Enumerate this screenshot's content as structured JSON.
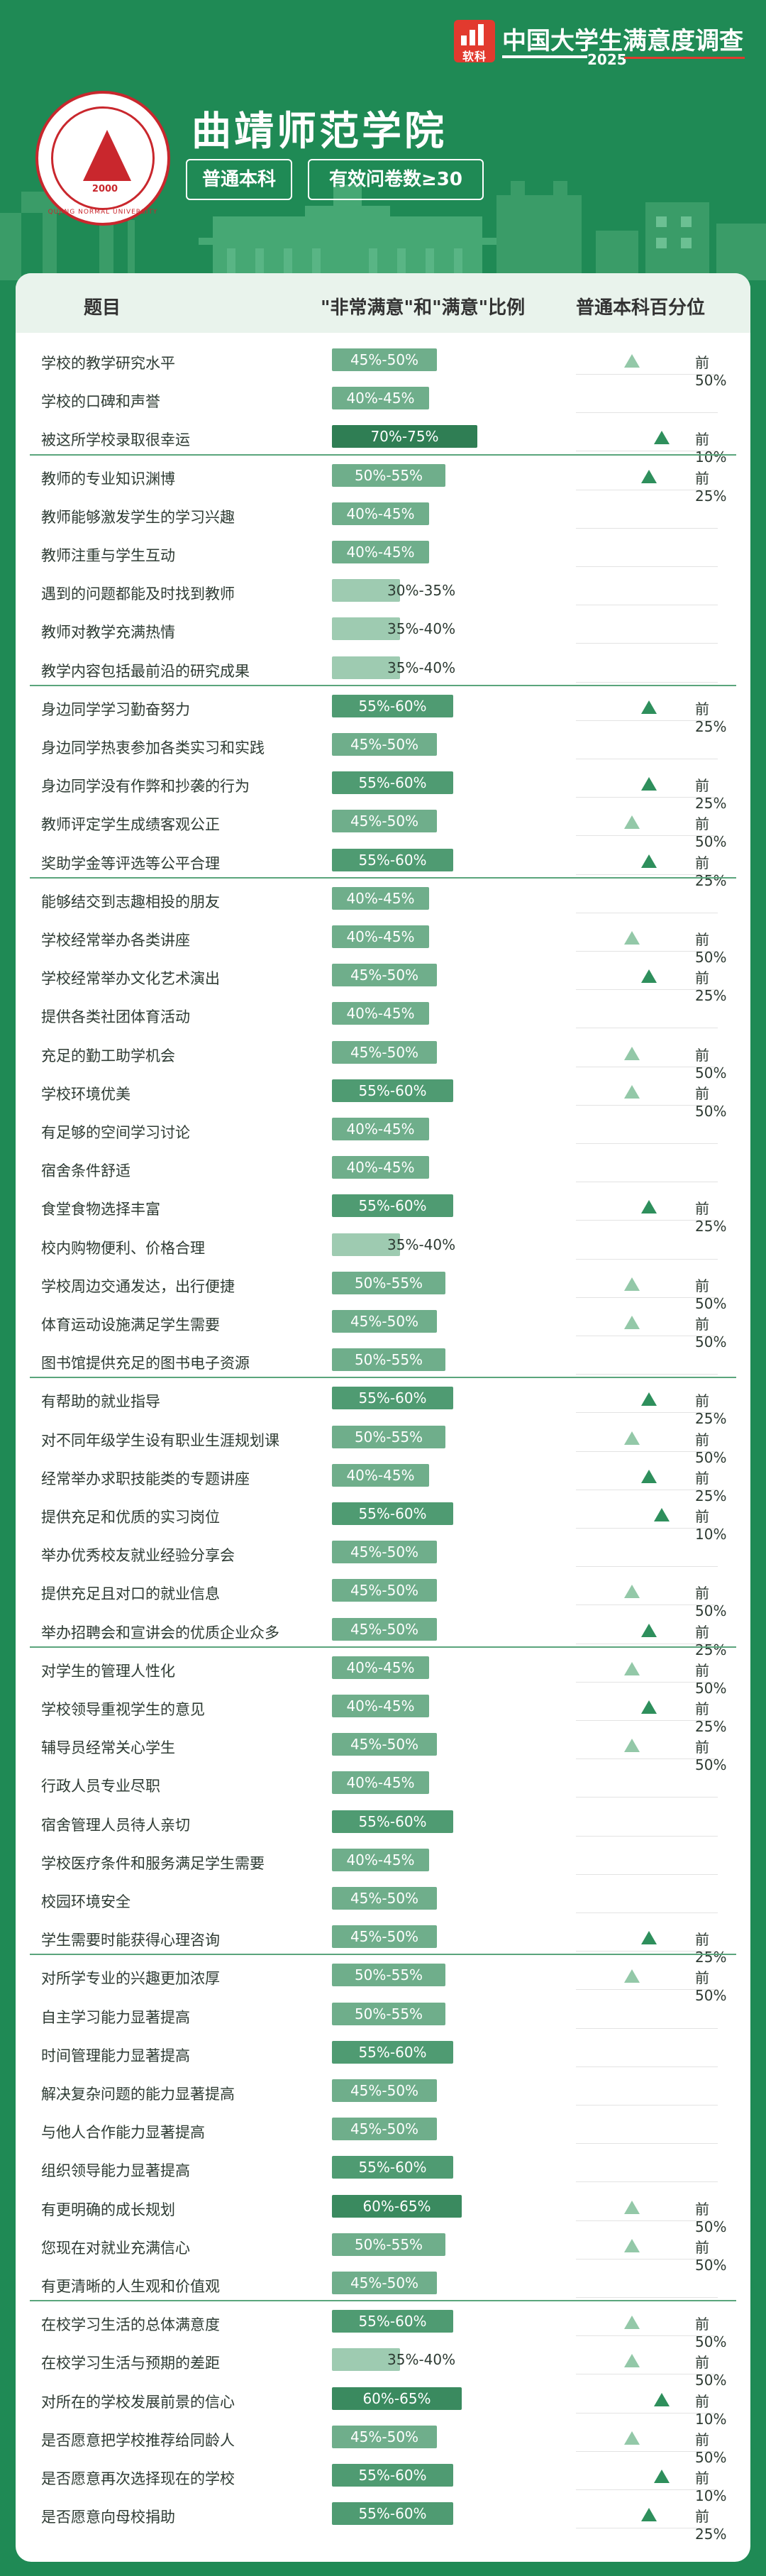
{
  "brand": {
    "logo_text": "软科",
    "title": "中国大学生满意度调查",
    "year": "2025"
  },
  "school": {
    "emblem_ring_text": "QUJING NORMAL UNIVERSITY",
    "emblem_year": "2000",
    "name": "曲靖师范学院",
    "tag_level": "普通本科",
    "tag_sample": "有效问卷数≥30"
  },
  "table": {
    "headers": {
      "item": "题目",
      "ratio": "\"非常满意\"和\"满意\"比例",
      "percentile": "普通本科百分位"
    },
    "colors": {
      "bar_30_35": "#9ecbb1",
      "bar_35_40": "#9ecbb1",
      "bar_40_45": "#6fae8b",
      "bar_45_50": "#6fae8b",
      "bar_50_55": "#6fae8b",
      "bar_55_60": "#4f9b72",
      "bar_60_65": "#3a8a5f",
      "bar_70_75": "#2f7e54"
    },
    "groups": [
      [
        {
          "q": "学校的教学研究水平",
          "ratio": "45%-50%",
          "level": 47.5,
          "pct": "前50%"
        },
        {
          "q": "学校的口碑和声誉",
          "ratio": "40%-45%",
          "level": 42.5,
          "pct": ""
        },
        {
          "q": "被这所学校录取很幸运",
          "ratio": "70%-75%",
          "level": 72.5,
          "pct": "前10%"
        }
      ],
      [
        {
          "q": "教师的专业知识渊博",
          "ratio": "50%-55%",
          "level": 52.5,
          "pct": "前25%"
        },
        {
          "q": "教师能够激发学生的学习兴趣",
          "ratio": "40%-45%",
          "level": 42.5,
          "pct": ""
        },
        {
          "q": "教师注重与学生互动",
          "ratio": "40%-45%",
          "level": 42.5,
          "pct": ""
        },
        {
          "q": "遇到的问题都能及时找到教师",
          "ratio": "30%-35%",
          "level": 32.5,
          "pct": ""
        },
        {
          "q": "教师对教学充满热情",
          "ratio": "35%-40%",
          "level": 37.5,
          "pct": ""
        },
        {
          "q": "教学内容包括最前沿的研究成果",
          "ratio": "35%-40%",
          "level": 37.5,
          "pct": ""
        }
      ],
      [
        {
          "q": "身边同学学习勤奋努力",
          "ratio": "55%-60%",
          "level": 57.5,
          "pct": "前25%"
        },
        {
          "q": "身边同学热衷参加各类实习和实践",
          "ratio": "45%-50%",
          "level": 47.5,
          "pct": ""
        },
        {
          "q": "身边同学没有作弊和抄袭的行为",
          "ratio": "55%-60%",
          "level": 57.5,
          "pct": "前25%"
        },
        {
          "q": "教师评定学生成绩客观公正",
          "ratio": "45%-50%",
          "level": 47.5,
          "pct": "前50%"
        },
        {
          "q": "奖助学金等评选等公平合理",
          "ratio": "55%-60%",
          "level": 57.5,
          "pct": "前25%"
        }
      ],
      [
        {
          "q": "能够结交到志趣相投的朋友",
          "ratio": "40%-45%",
          "level": 42.5,
          "pct": ""
        },
        {
          "q": "学校经常举办各类讲座",
          "ratio": "40%-45%",
          "level": 42.5,
          "pct": "前50%"
        },
        {
          "q": "学校经常举办文化艺术演出",
          "ratio": "45%-50%",
          "level": 47.5,
          "pct": "前25%"
        },
        {
          "q": "提供各类社团体育活动",
          "ratio": "40%-45%",
          "level": 42.5,
          "pct": ""
        },
        {
          "q": "充足的勤工助学机会",
          "ratio": "45%-50%",
          "level": 47.5,
          "pct": "前50%"
        },
        {
          "q": "学校环境优美",
          "ratio": "55%-60%",
          "level": 57.5,
          "pct": "前50%"
        },
        {
          "q": "有足够的空间学习讨论",
          "ratio": "40%-45%",
          "level": 42.5,
          "pct": ""
        },
        {
          "q": "宿舍条件舒适",
          "ratio": "40%-45%",
          "level": 42.5,
          "pct": ""
        },
        {
          "q": "食堂食物选择丰富",
          "ratio": "55%-60%",
          "level": 57.5,
          "pct": "前25%"
        },
        {
          "q": "校内购物便利、价格合理",
          "ratio": "35%-40%",
          "level": 37.5,
          "pct": ""
        },
        {
          "q": "学校周边交通发达，出行便捷",
          "ratio": "50%-55%",
          "level": 52.5,
          "pct": "前50%"
        },
        {
          "q": "体育运动设施满足学生需要",
          "ratio": "45%-50%",
          "level": 47.5,
          "pct": "前50%"
        },
        {
          "q": "图书馆提供充足的图书电子资源",
          "ratio": "50%-55%",
          "level": 52.5,
          "pct": ""
        }
      ],
      [
        {
          "q": "有帮助的就业指导",
          "ratio": "55%-60%",
          "level": 57.5,
          "pct": "前25%"
        },
        {
          "q": "对不同年级学生设有职业生涯规划课",
          "ratio": "50%-55%",
          "level": 52.5,
          "pct": "前50%"
        },
        {
          "q": "经常举办求职技能类的专题讲座",
          "ratio": "40%-45%",
          "level": 42.5,
          "pct": "前25%"
        },
        {
          "q": "提供充足和优质的实习岗位",
          "ratio": "55%-60%",
          "level": 57.5,
          "pct": "前10%"
        },
        {
          "q": "举办优秀校友就业经验分享会",
          "ratio": "45%-50%",
          "level": 47.5,
          "pct": ""
        },
        {
          "q": "提供充足且对口的就业信息",
          "ratio": "45%-50%",
          "level": 47.5,
          "pct": "前50%"
        },
        {
          "q": "举办招聘会和宣讲会的优质企业众多",
          "ratio": "45%-50%",
          "level": 47.5,
          "pct": "前25%"
        }
      ],
      [
        {
          "q": "对学生的管理人性化",
          "ratio": "40%-45%",
          "level": 42.5,
          "pct": "前50%"
        },
        {
          "q": "学校领导重视学生的意见",
          "ratio": "40%-45%",
          "level": 42.5,
          "pct": "前25%"
        },
        {
          "q": "辅导员经常关心学生",
          "ratio": "45%-50%",
          "level": 47.5,
          "pct": "前50%"
        },
        {
          "q": "行政人员专业尽职",
          "ratio": "40%-45%",
          "level": 42.5,
          "pct": ""
        },
        {
          "q": "宿舍管理人员待人亲切",
          "ratio": "55%-60%",
          "level": 57.5,
          "pct": ""
        },
        {
          "q": "学校医疗条件和服务满足学生需要",
          "ratio": "40%-45%",
          "level": 42.5,
          "pct": ""
        },
        {
          "q": "校园环境安全",
          "ratio": "45%-50%",
          "level": 47.5,
          "pct": ""
        },
        {
          "q": "学生需要时能获得心理咨询",
          "ratio": "45%-50%",
          "level": 47.5,
          "pct": "前25%"
        }
      ],
      [
        {
          "q": "对所学专业的兴趣更加浓厚",
          "ratio": "50%-55%",
          "level": 52.5,
          "pct": "前50%"
        },
        {
          "q": "自主学习能力显著提高",
          "ratio": "50%-55%",
          "level": 52.5,
          "pct": ""
        },
        {
          "q": "时间管理能力显著提高",
          "ratio": "55%-60%",
          "level": 57.5,
          "pct": ""
        },
        {
          "q": "解决复杂问题的能力显著提高",
          "ratio": "45%-50%",
          "level": 47.5,
          "pct": ""
        },
        {
          "q": "与他人合作能力显著提高",
          "ratio": "45%-50%",
          "level": 47.5,
          "pct": ""
        },
        {
          "q": "组织领导能力显著提高",
          "ratio": "55%-60%",
          "level": 57.5,
          "pct": ""
        },
        {
          "q": "有更明确的成长规划",
          "ratio": "60%-65%",
          "level": 62.5,
          "pct": "前50%"
        },
        {
          "q": "您现在对就业充满信心",
          "ratio": "50%-55%",
          "level": 52.5,
          "pct": "前50%"
        },
        {
          "q": "有更清晰的人生观和价值观",
          "ratio": "45%-50%",
          "level": 47.5,
          "pct": ""
        }
      ],
      [
        {
          "q": "在校学习生活的总体满意度",
          "ratio": "55%-60%",
          "level": 57.5,
          "pct": "前50%"
        },
        {
          "q": "在校学习生活与预期的差距",
          "ratio": "35%-40%",
          "level": 37.5,
          "pct": "前50%"
        },
        {
          "q": "对所在的学校发展前景的信心",
          "ratio": "60%-65%",
          "level": 62.5,
          "pct": "前10%"
        },
        {
          "q": "是否愿意把学校推荐给同龄人",
          "ratio": "45%-50%",
          "level": 47.5,
          "pct": "前50%"
        },
        {
          "q": "是否愿意再次选择现在的学校",
          "ratio": "55%-60%",
          "level": 57.5,
          "pct": "前10%"
        },
        {
          "q": "是否愿意向母校捐助",
          "ratio": "55%-60%",
          "level": 57.5,
          "pct": "前25%"
        }
      ]
    ]
  }
}
